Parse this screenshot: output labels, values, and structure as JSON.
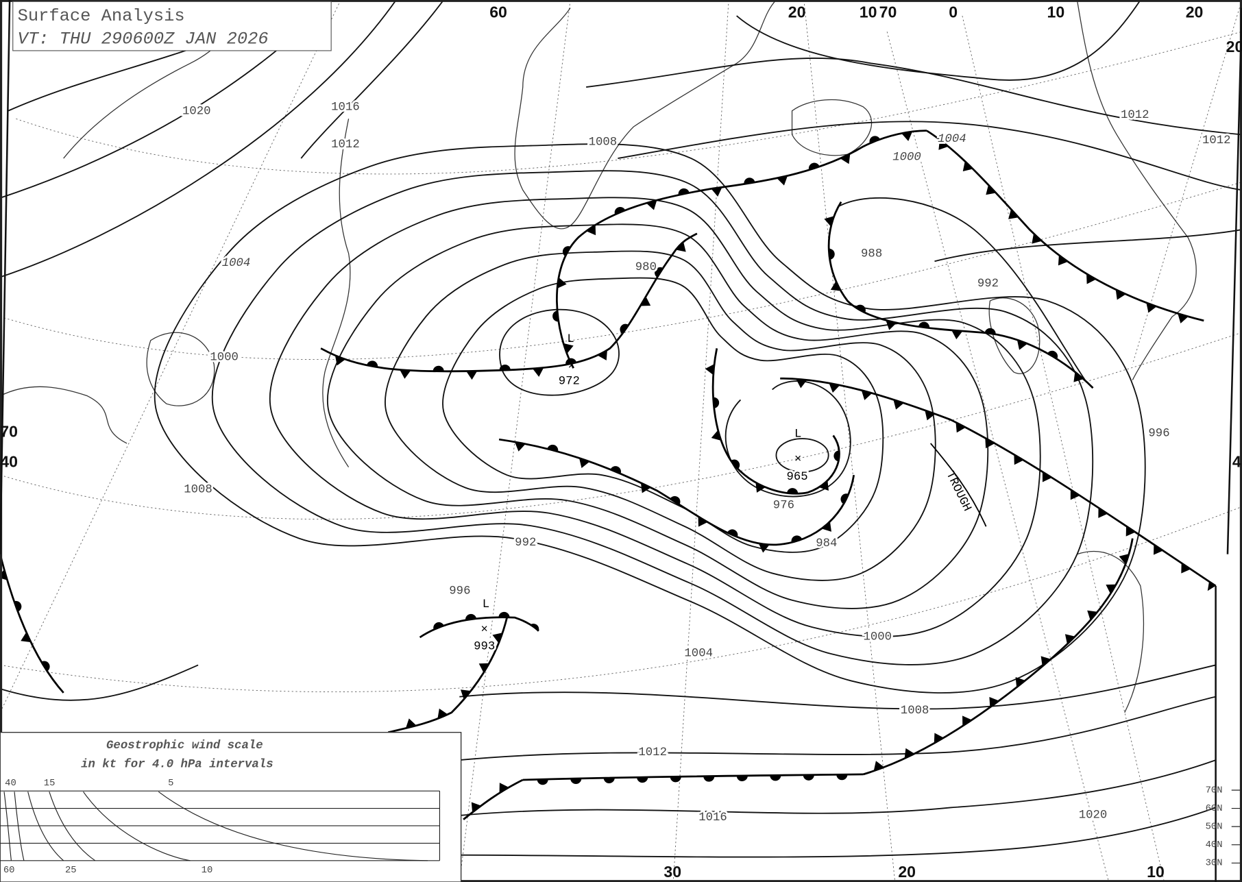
{
  "header": {
    "title": "Surface Analysis",
    "valid_time": "VT: THU 290600Z JAN 2026"
  },
  "graticule_labels": [
    "60",
    "20",
    "10",
    "70",
    "0",
    "10",
    "20",
    "20",
    "70",
    "40",
    "4",
    "30",
    "20",
    "10"
  ],
  "isobar_labels": [
    "1020",
    "1016",
    "1012",
    "1008",
    "1004",
    "1000",
    "1008",
    "992",
    "996",
    "980",
    "988",
    "992",
    "1000",
    "1004",
    "1012",
    "1012",
    "996",
    "976",
    "984",
    "1000",
    "1004",
    "1008",
    "1012",
    "1016",
    "1020"
  ],
  "pressure_centers": [
    {
      "symbol": "L",
      "value": "972"
    },
    {
      "symbol": "L",
      "value": "965"
    },
    {
      "symbol": "L",
      "value": "993"
    }
  ],
  "trough_label": "TROUGH",
  "wind_scale": {
    "title_line1": "Geostrophic wind scale",
    "title_line2": "in kt for 4.0 hPa intervals",
    "top_ticks": [
      "40",
      "15",
      "5"
    ],
    "bottom_ticks": [
      "60",
      "25",
      "10"
    ],
    "latitudes": [
      "70N",
      "60N",
      "50N",
      "40N",
      "30N"
    ]
  },
  "front_types": {
    "cold": "triangles",
    "warm": "semicircles",
    "occluded": "alternating"
  },
  "colors": {
    "ink": "#000000",
    "paper": "#ffffff"
  }
}
